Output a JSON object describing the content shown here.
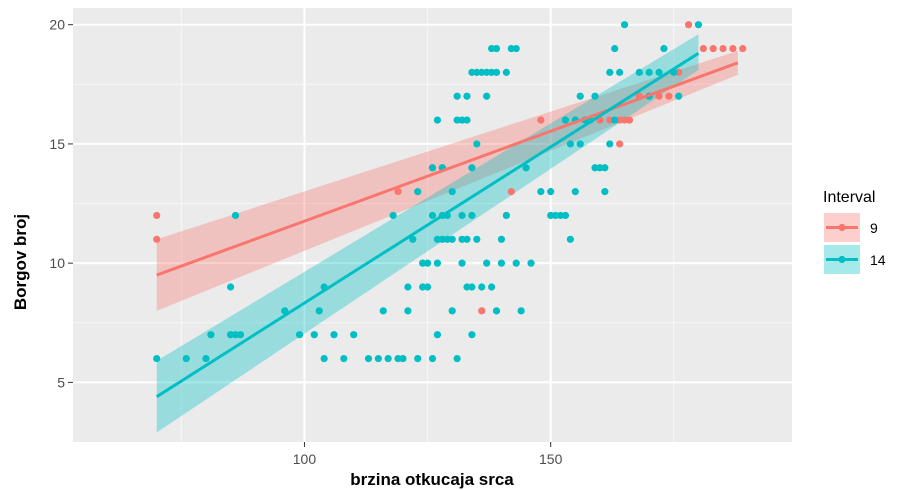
{
  "chart_data": {
    "type": "scatter",
    "title": "",
    "xlabel": "brzina otkucaja srca",
    "ylabel": "Borgov broj",
    "xlim": [
      53,
      199
    ],
    "ylim": [
      2.5,
      20.7
    ],
    "xticks": [
      100,
      150
    ],
    "yticks": [
      5,
      10,
      15,
      20
    ],
    "grid": true,
    "panel_background": "#ebebeb",
    "legend": {
      "title": "Interval",
      "position": "right"
    },
    "series": [
      {
        "name": "9",
        "color": "#f8766d",
        "points": [
          [
            70,
            12
          ],
          [
            70,
            11
          ],
          [
            119,
            13
          ],
          [
            126,
            14
          ],
          [
            128,
            14
          ],
          [
            136,
            8
          ],
          [
            142,
            13
          ],
          [
            148,
            16
          ],
          [
            153,
            16
          ],
          [
            155,
            16
          ],
          [
            157,
            16
          ],
          [
            158,
            16
          ],
          [
            160,
            16
          ],
          [
            162,
            16
          ],
          [
            164,
            15
          ],
          [
            164,
            16
          ],
          [
            165,
            16
          ],
          [
            166,
            16
          ],
          [
            168,
            17
          ],
          [
            170,
            17
          ],
          [
            172,
            17
          ],
          [
            174,
            17
          ],
          [
            176,
            18
          ],
          [
            178,
            20
          ],
          [
            181,
            19
          ],
          [
            183,
            19
          ],
          [
            185,
            19
          ],
          [
            187,
            19
          ],
          [
            189,
            19
          ]
        ],
        "fit": {
          "x": [
            70,
            188
          ],
          "y": [
            9.5,
            18.4
          ],
          "ci_low": [
            8.0,
            17.9
          ],
          "ci_high": [
            11.0,
            18.9
          ]
        }
      },
      {
        "name": "14",
        "color": "#00bfc4",
        "points": [
          [
            70,
            6
          ],
          [
            76,
            6
          ],
          [
            80,
            6
          ],
          [
            81,
            7
          ],
          [
            85,
            9
          ],
          [
            85,
            7
          ],
          [
            86,
            7
          ],
          [
            87,
            7
          ],
          [
            86,
            12
          ],
          [
            96,
            8
          ],
          [
            99,
            7
          ],
          [
            102,
            7
          ],
          [
            103,
            8
          ],
          [
            104,
            9
          ],
          [
            104,
            6
          ],
          [
            106,
            7
          ],
          [
            108,
            6
          ],
          [
            110,
            7
          ],
          [
            113,
            6
          ],
          [
            115,
            6
          ],
          [
            116,
            8
          ],
          [
            117,
            6
          ],
          [
            119,
            6
          ],
          [
            120,
            6
          ],
          [
            121,
            9
          ],
          [
            121,
            8
          ],
          [
            118,
            12
          ],
          [
            122,
            11
          ],
          [
            123,
            6
          ],
          [
            123,
            13
          ],
          [
            124,
            9
          ],
          [
            124,
            10
          ],
          [
            125,
            9
          ],
          [
            125,
            10
          ],
          [
            126,
            12
          ],
          [
            126,
            14
          ],
          [
            126,
            6
          ],
          [
            127,
            7
          ],
          [
            127,
            10
          ],
          [
            127,
            11
          ],
          [
            127,
            16
          ],
          [
            128,
            12
          ],
          [
            128,
            11
          ],
          [
            128,
            14
          ],
          [
            129,
            11
          ],
          [
            129,
            12
          ],
          [
            130,
            8
          ],
          [
            130,
            11
          ],
          [
            130,
            13
          ],
          [
            131,
            6
          ],
          [
            131,
            16
          ],
          [
            131,
            17
          ],
          [
            132,
            10
          ],
          [
            132,
            11
          ],
          [
            132,
            12
          ],
          [
            132,
            16
          ],
          [
            133,
            9
          ],
          [
            133,
            11
          ],
          [
            133,
            16
          ],
          [
            133,
            17
          ],
          [
            134,
            18
          ],
          [
            134,
            12
          ],
          [
            134,
            9
          ],
          [
            134,
            7
          ],
          [
            134,
            14
          ],
          [
            135,
            11
          ],
          [
            135,
            18
          ],
          [
            135,
            15
          ],
          [
            136,
            9
          ],
          [
            136,
            18
          ],
          [
            137,
            10
          ],
          [
            137,
            18
          ],
          [
            137,
            17
          ],
          [
            138,
            9
          ],
          [
            138,
            19
          ],
          [
            138,
            18
          ],
          [
            139,
            18
          ],
          [
            139,
            8
          ],
          [
            139,
            19
          ],
          [
            140,
            10
          ],
          [
            140,
            11
          ],
          [
            141,
            18
          ],
          [
            141,
            12
          ],
          [
            142,
            19
          ],
          [
            143,
            19
          ],
          [
            143,
            10
          ],
          [
            144,
            8
          ],
          [
            145,
            14
          ],
          [
            146,
            10
          ],
          [
            148,
            13
          ],
          [
            150,
            13
          ],
          [
            150,
            12
          ],
          [
            151,
            12
          ],
          [
            152,
            12
          ],
          [
            153,
            12
          ],
          [
            153,
            16
          ],
          [
            154,
            15
          ],
          [
            154,
            11
          ],
          [
            155,
            13
          ],
          [
            155,
            16
          ],
          [
            156,
            17
          ],
          [
            156,
            15
          ],
          [
            157,
            16
          ],
          [
            158,
            16
          ],
          [
            159,
            14
          ],
          [
            159,
            17
          ],
          [
            160,
            14
          ],
          [
            161,
            13
          ],
          [
            161,
            14
          ],
          [
            162,
            18
          ],
          [
            162,
            15
          ],
          [
            163,
            19
          ],
          [
            163,
            16
          ],
          [
            164,
            18
          ],
          [
            165,
            20
          ],
          [
            168,
            18
          ],
          [
            170,
            17
          ],
          [
            170,
            18
          ],
          [
            172,
            18
          ],
          [
            173,
            19
          ],
          [
            175,
            18
          ],
          [
            176,
            17
          ],
          [
            180,
            20
          ]
        ],
        "fit": {
          "x": [
            70,
            180
          ],
          "y": [
            4.4,
            18.8
          ],
          "ci_low": [
            2.9,
            18.1
          ],
          "ci_high": [
            5.9,
            19.6
          ]
        }
      }
    ]
  }
}
